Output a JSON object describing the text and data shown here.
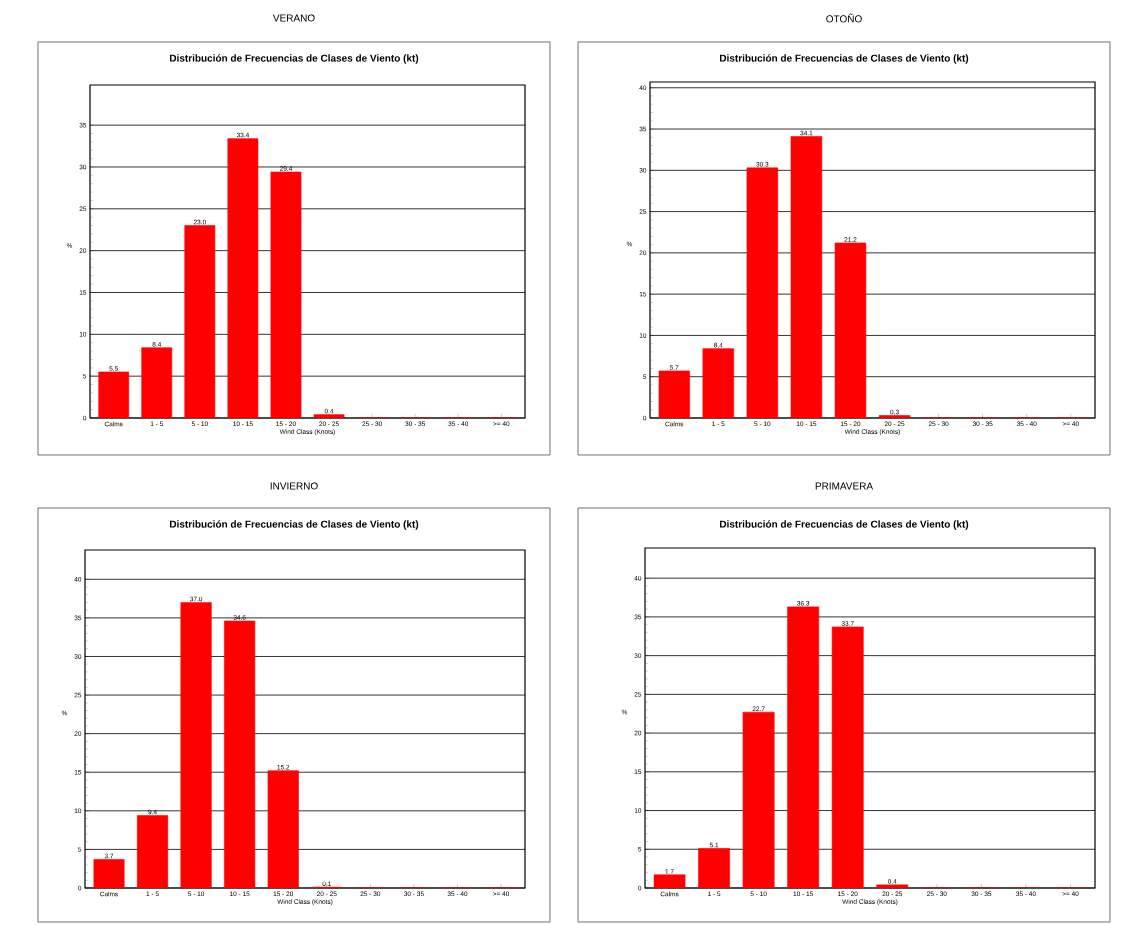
{
  "chart_data": [
    {
      "type": "bar",
      "title": "VERANO",
      "subtitle": "Distribución de Frecuencias de Clases de Viento (kt)",
      "xlabel": "Wind Class (Knots)",
      "ylabel": "%",
      "categories": [
        "Calms",
        "1 - 5",
        "5 - 10",
        "10 - 15",
        "15 - 20",
        "20 - 25",
        "25 - 30",
        "30 - 35",
        "35 - 40",
        ">= 40"
      ],
      "values": [
        5.5,
        8.4,
        23.0,
        33.4,
        29.4,
        0.4,
        0,
        0,
        0,
        0
      ],
      "value_labels": [
        "5.5",
        "8.4",
        "23.0",
        "33.4",
        "29.4",
        "0.4",
        null,
        null,
        null,
        null
      ],
      "color": "#ff0000",
      "ylim": [
        0,
        39.8
      ],
      "yticks": [
        0,
        5,
        10,
        15,
        20,
        25,
        30,
        35
      ],
      "grid": "y"
    },
    {
      "type": "bar",
      "title": "OTOÑO",
      "subtitle": "Distribución de Frecuencias de Clases de Viento (kt)",
      "xlabel": "Wind Class (Knots)",
      "ylabel": "%",
      "categories": [
        "Calms",
        "1 - 5",
        "5 - 10",
        "10 - 15",
        "15 - 20",
        "20 - 25",
        "25 - 30",
        "30 - 35",
        "35 - 40",
        ">= 40"
      ],
      "values": [
        5.7,
        8.4,
        30.3,
        34.1,
        21.2,
        0.3,
        0,
        0,
        0,
        0
      ],
      "value_labels": [
        "5.7",
        "8.4",
        "30.3",
        "34.1",
        "21.2",
        "0.3",
        null,
        null,
        null,
        null
      ],
      "color": "#ff0000",
      "ylim": [
        0,
        40.7
      ],
      "yticks": [
        0,
        5,
        10,
        15,
        20,
        25,
        30,
        35,
        40
      ],
      "grid": "y"
    },
    {
      "type": "bar",
      "title": "INVIERNO",
      "subtitle": "Distribución de Frecuencias de Clases de Viento (kt)",
      "xlabel": "Wind Class (Knots)",
      "ylabel": "%",
      "categories": [
        "Calms",
        "1 - 5",
        "5 - 10",
        "10 - 15",
        "15 - 20",
        "20 - 25",
        "25 - 30",
        "30 - 35",
        "35 - 40",
        ">= 40"
      ],
      "values": [
        3.7,
        9.4,
        37.0,
        34.6,
        15.2,
        0.1,
        0,
        0,
        0,
        0
      ],
      "value_labels": [
        "3.7",
        "9.4",
        "37.0",
        "34.6",
        "15.2",
        "0.1",
        null,
        null,
        null,
        null
      ],
      "color": "#ff0000",
      "ylim": [
        0,
        43.8
      ],
      "yticks": [
        0,
        5,
        10,
        15,
        20,
        25,
        30,
        35,
        40
      ],
      "grid": "y"
    },
    {
      "type": "bar",
      "title": "PRIMAVERA",
      "subtitle": "Distribución de Frecuencias de Clases de Viento (kt)",
      "xlabel": "Wind Class (Knots)",
      "ylabel": "%",
      "categories": [
        "Calms",
        "1 - 5",
        "5 - 10",
        "10 - 15",
        "15 - 20",
        "20 - 25",
        "25 - 30",
        "30 - 35",
        "35 - 40",
        ">= 40"
      ],
      "values": [
        1.7,
        5.1,
        22.7,
        36.3,
        33.7,
        0.4,
        0,
        0,
        0,
        0
      ],
      "value_labels": [
        "1.7",
        "5.1",
        "22.7",
        "36.3",
        "33.7",
        "0.4",
        null,
        null,
        null,
        null
      ],
      "color": "#ff0000",
      "ylim": [
        0,
        43.9
      ],
      "yticks": [
        0,
        5,
        10,
        15,
        20,
        25,
        30,
        35,
        40
      ],
      "grid": "y"
    }
  ]
}
